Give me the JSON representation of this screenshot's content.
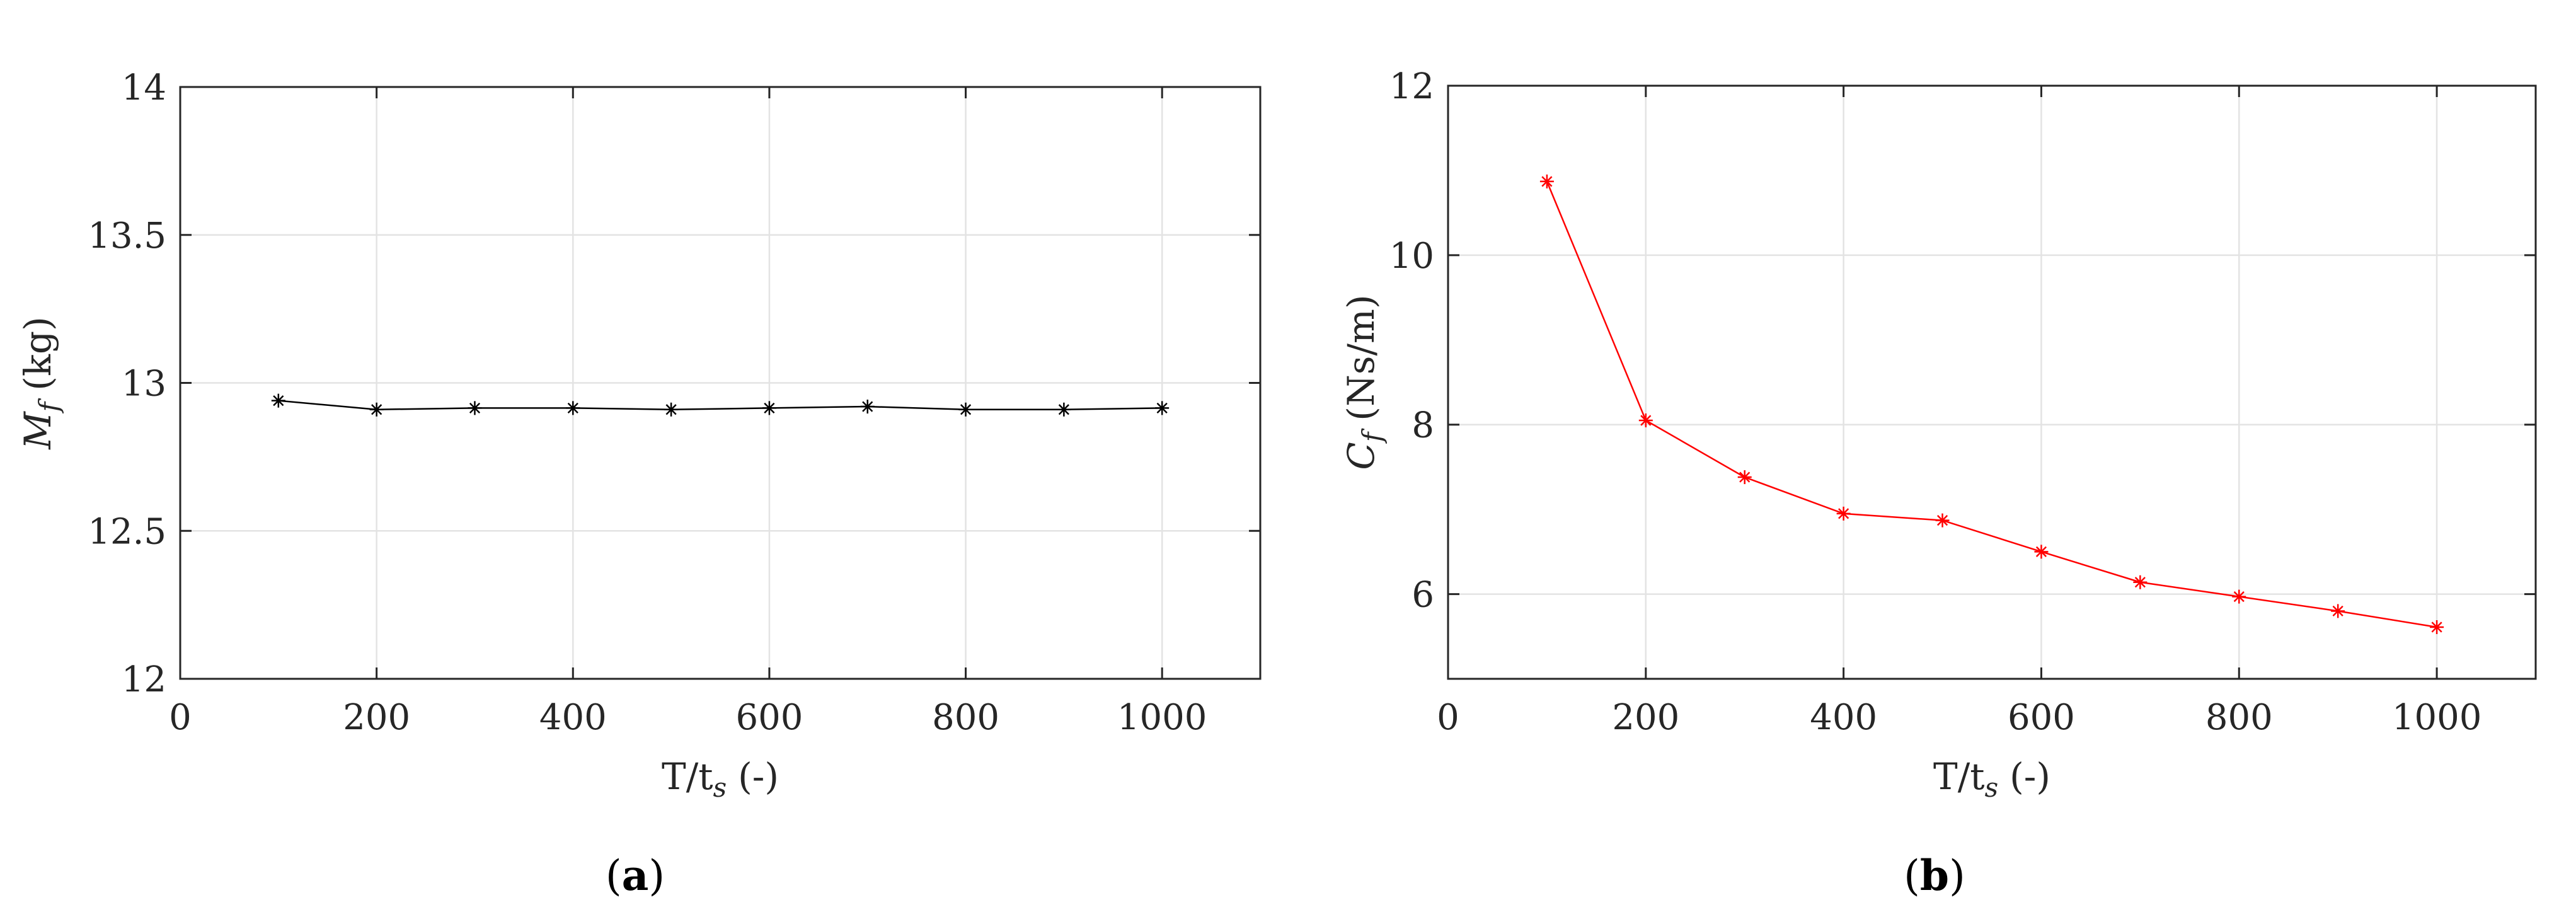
{
  "chart_data": [
    {
      "panel": "a",
      "type": "line",
      "xlabel": "T/t",
      "xlabel_sub": "s",
      "xlabel_suffix": "(-)",
      "ylabel": "M",
      "ylabel_sub": "f",
      "ylabel_suffix": "(kg)",
      "xlim": [
        0,
        1100
      ],
      "ylim": [
        12,
        14
      ],
      "xticks": [
        0,
        200,
        400,
        600,
        800,
        1000
      ],
      "xtick_labels": [
        "0",
        "200",
        "400",
        "600",
        "800",
        "1000"
      ],
      "yticks": [
        12,
        12.5,
        13,
        13.5,
        14
      ],
      "ytick_labels": [
        "12",
        "12.5",
        "13",
        "13.5",
        "14"
      ],
      "grid": true,
      "series": [
        {
          "color": "#000000",
          "marker": "asterisk",
          "x": [
            100,
            200,
            300,
            400,
            500,
            600,
            700,
            800,
            900,
            1000
          ],
          "y": [
            12.94,
            12.91,
            12.915,
            12.915,
            12.91,
            12.915,
            12.92,
            12.91,
            12.91,
            12.915
          ]
        }
      ]
    },
    {
      "panel": "b",
      "type": "line",
      "xlabel": "T/t",
      "xlabel_sub": "s",
      "xlabel_suffix": "(-)",
      "ylabel": "C",
      "ylabel_sub": "f",
      "ylabel_suffix": "(Ns/m)",
      "xlim": [
        0,
        1100
      ],
      "ylim": [
        5,
        12
      ],
      "xticks": [
        0,
        200,
        400,
        600,
        800,
        1000
      ],
      "xtick_labels": [
        "0",
        "200",
        "400",
        "600",
        "800",
        "1000"
      ],
      "yticks": [
        6,
        8,
        10,
        12
      ],
      "ytick_labels": [
        "6",
        "8",
        "10",
        "12"
      ],
      "grid": true,
      "series": [
        {
          "color": "#ff0000",
          "marker": "asterisk",
          "x": [
            100,
            200,
            300,
            400,
            500,
            600,
            700,
            800,
            900,
            1000
          ],
          "y": [
            10.87,
            8.05,
            7.38,
            6.95,
            6.87,
            6.5,
            6.14,
            5.97,
            5.8,
            5.61
          ]
        }
      ]
    }
  ],
  "panel_labels": [
    {
      "open": "(",
      "letter": "a",
      "close": ")"
    },
    {
      "open": "(",
      "letter": "b",
      "close": ")"
    }
  ]
}
